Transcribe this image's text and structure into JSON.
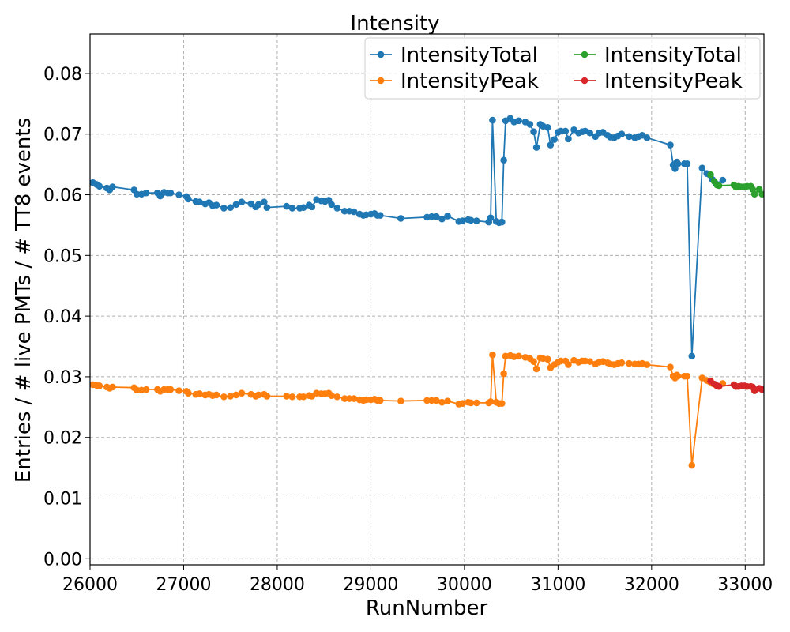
{
  "chart_data": {
    "type": "line",
    "title": "Intensity",
    "xlabel": "RunNumber",
    "ylabel": "Entries / # live PMTs / # TT8 events",
    "xlim": [
      26000,
      33200
    ],
    "ylim": [
      -0.001,
      0.0865
    ],
    "xticks": [
      26000,
      27000,
      28000,
      29000,
      30000,
      31000,
      32000,
      33000
    ],
    "yticks": [
      0.0,
      0.01,
      0.02,
      0.03,
      0.04,
      0.05,
      0.06,
      0.07,
      0.08
    ],
    "xtick_labels": [
      "26000",
      "27000",
      "28000",
      "29000",
      "30000",
      "31000",
      "32000",
      "33000"
    ],
    "ytick_labels": [
      "0.00",
      "0.01",
      "0.02",
      "0.03",
      "0.04",
      "0.05",
      "0.06",
      "0.07",
      "0.08"
    ],
    "grid": true,
    "legend": {
      "location": "top-right",
      "columns": 2
    },
    "series": [
      {
        "name": "IntensityTotal",
        "color": "#1f77b4",
        "x": [
          26030,
          26070,
          26100,
          26180,
          26210,
          26240,
          26470,
          26500,
          26550,
          26600,
          26720,
          26750,
          26790,
          26830,
          26860,
          26950,
          27030,
          27050,
          27130,
          27170,
          27230,
          27270,
          27310,
          27350,
          27430,
          27500,
          27560,
          27620,
          27720,
          27770,
          27800,
          27860,
          27890,
          28100,
          28160,
          28240,
          28280,
          28340,
          28370,
          28420,
          28470,
          28510,
          28550,
          28580,
          28640,
          28720,
          28770,
          28820,
          28880,
          28920,
          28950,
          29000,
          29040,
          29070,
          29100,
          29320,
          29600,
          29650,
          29700,
          29760,
          29820,
          29940,
          29980,
          30040,
          30070,
          30130,
          30260,
          30280,
          30300,
          30340,
          30370,
          30400,
          30420,
          30440,
          30490,
          30530,
          30580,
          30650,
          30700,
          30740,
          30770,
          30810,
          30840,
          30890,
          30920,
          30960,
          31000,
          31030,
          31080,
          31110,
          31170,
          31220,
          31260,
          31290,
          31340,
          31400,
          31440,
          31480,
          31530,
          31560,
          31600,
          31640,
          31680,
          31760,
          31820,
          31860,
          31900,
          31950,
          32200,
          32230,
          32250,
          32270,
          32280,
          32350,
          32380,
          32430,
          32540,
          32590,
          32620,
          32650,
          32690,
          32760
        ],
        "y": [
          0.062,
          0.0617,
          0.0614,
          0.0611,
          0.0608,
          0.0613,
          0.0608,
          0.0601,
          0.0601,
          0.0603,
          0.0603,
          0.0598,
          0.0604,
          0.0603,
          0.0603,
          0.06,
          0.0597,
          0.0593,
          0.0589,
          0.0588,
          0.0585,
          0.0587,
          0.0582,
          0.0583,
          0.0578,
          0.0579,
          0.0584,
          0.0588,
          0.0585,
          0.058,
          0.0584,
          0.0588,
          0.0579,
          0.0581,
          0.0578,
          0.0578,
          0.0579,
          0.0583,
          0.058,
          0.0592,
          0.059,
          0.0589,
          0.0591,
          0.0584,
          0.0578,
          0.0573,
          0.0573,
          0.0572,
          0.0568,
          0.0566,
          0.0567,
          0.0568,
          0.0569,
          0.0566,
          0.0566,
          0.0561,
          0.0563,
          0.0564,
          0.0564,
          0.056,
          0.0565,
          0.0556,
          0.0557,
          0.0559,
          0.0558,
          0.0557,
          0.0555,
          0.0562,
          0.0723,
          0.0556,
          0.0554,
          0.0555,
          0.0657,
          0.0722,
          0.0726,
          0.072,
          0.0722,
          0.072,
          0.0716,
          0.0704,
          0.0678,
          0.0716,
          0.0713,
          0.0711,
          0.0682,
          0.0691,
          0.0703,
          0.0705,
          0.0705,
          0.0692,
          0.0707,
          0.0702,
          0.0704,
          0.0705,
          0.0702,
          0.0696,
          0.0702,
          0.0703,
          0.0698,
          0.0695,
          0.0694,
          0.0697,
          0.07,
          0.0696,
          0.0694,
          0.0696,
          0.0698,
          0.0694,
          0.0682,
          0.0649,
          0.0643,
          0.0654,
          0.0651,
          0.0651,
          0.0651,
          0.0334,
          0.0644,
          0.0635,
          0.0633,
          0.0625,
          0.0618,
          0.0624
        ]
      },
      {
        "name": "IntensityPeak",
        "color": "#ff7f0e",
        "x": [
          26030,
          26070,
          26100,
          26180,
          26210,
          26240,
          26470,
          26500,
          26550,
          26600,
          26720,
          26750,
          26790,
          26830,
          26860,
          26950,
          27030,
          27050,
          27130,
          27170,
          27230,
          27270,
          27310,
          27350,
          27430,
          27500,
          27560,
          27620,
          27720,
          27770,
          27800,
          27860,
          27890,
          28100,
          28160,
          28240,
          28280,
          28340,
          28370,
          28420,
          28470,
          28510,
          28550,
          28580,
          28640,
          28720,
          28770,
          28820,
          28880,
          28920,
          28950,
          29000,
          29040,
          29070,
          29100,
          29320,
          29600,
          29650,
          29700,
          29760,
          29820,
          29940,
          29980,
          30040,
          30070,
          30130,
          30260,
          30280,
          30300,
          30340,
          30370,
          30400,
          30420,
          30440,
          30490,
          30530,
          30580,
          30650,
          30700,
          30740,
          30770,
          30810,
          30840,
          30890,
          30920,
          30960,
          31000,
          31030,
          31080,
          31110,
          31170,
          31220,
          31260,
          31290,
          31340,
          31400,
          31440,
          31480,
          31530,
          31560,
          31600,
          31640,
          31680,
          31760,
          31820,
          31860,
          31900,
          31950,
          32200,
          32230,
          32250,
          32270,
          32280,
          32350,
          32380,
          32430,
          32540,
          32590,
          32620,
          32650,
          32690,
          32760
        ],
        "y": [
          0.0287,
          0.0286,
          0.0285,
          0.0283,
          0.0281,
          0.0283,
          0.0282,
          0.0278,
          0.0278,
          0.0279,
          0.0279,
          0.0276,
          0.0279,
          0.0279,
          0.0279,
          0.0277,
          0.0276,
          0.0273,
          0.0271,
          0.0272,
          0.027,
          0.0271,
          0.0269,
          0.027,
          0.0267,
          0.0268,
          0.027,
          0.0273,
          0.0271,
          0.0268,
          0.027,
          0.0271,
          0.0268,
          0.0268,
          0.0267,
          0.0267,
          0.0267,
          0.0269,
          0.0268,
          0.0273,
          0.0272,
          0.0272,
          0.0273,
          0.0269,
          0.0267,
          0.0264,
          0.0264,
          0.0264,
          0.0262,
          0.0261,
          0.0262,
          0.0262,
          0.0263,
          0.0261,
          0.0261,
          0.026,
          0.0261,
          0.0261,
          0.0261,
          0.0258,
          0.026,
          0.0255,
          0.0256,
          0.0258,
          0.0257,
          0.0257,
          0.0257,
          0.0259,
          0.0336,
          0.0258,
          0.0256,
          0.0256,
          0.0305,
          0.0334,
          0.0335,
          0.0333,
          0.0334,
          0.0332,
          0.033,
          0.0325,
          0.0313,
          0.0331,
          0.033,
          0.0329,
          0.0315,
          0.032,
          0.0324,
          0.0326,
          0.0326,
          0.032,
          0.0327,
          0.0324,
          0.0326,
          0.0326,
          0.0325,
          0.0321,
          0.0324,
          0.0325,
          0.0323,
          0.0321,
          0.032,
          0.0322,
          0.0323,
          0.0322,
          0.0321,
          0.0321,
          0.0322,
          0.032,
          0.0316,
          0.0301,
          0.0298,
          0.0303,
          0.0301,
          0.0301,
          0.0301,
          0.0154,
          0.0298,
          0.0294,
          0.0292,
          0.0289,
          0.0286,
          0.0289
        ]
      },
      {
        "name": "IntensityTotal",
        "color": "#2ca02c",
        "x": [
          32630,
          32670,
          32700,
          32720,
          32880,
          32900,
          32930,
          32960,
          32990,
          33020,
          33060,
          33080,
          33100,
          33150,
          33180
        ],
        "y": [
          0.0633,
          0.0622,
          0.0616,
          0.0615,
          0.0616,
          0.0613,
          0.0614,
          0.0613,
          0.0613,
          0.0614,
          0.0614,
          0.0609,
          0.0601,
          0.0609,
          0.0601
        ]
      },
      {
        "name": "IntensityPeak",
        "color": "#d62728",
        "x": [
          32630,
          32670,
          32700,
          32720,
          32880,
          32900,
          32930,
          32960,
          32990,
          33020,
          33060,
          33080,
          33100,
          33150,
          33180
        ],
        "y": [
          0.0293,
          0.0288,
          0.0285,
          0.0284,
          0.0287,
          0.0284,
          0.0284,
          0.0285,
          0.0285,
          0.0284,
          0.0284,
          0.0283,
          0.0277,
          0.0281,
          0.0279
        ]
      }
    ]
  }
}
